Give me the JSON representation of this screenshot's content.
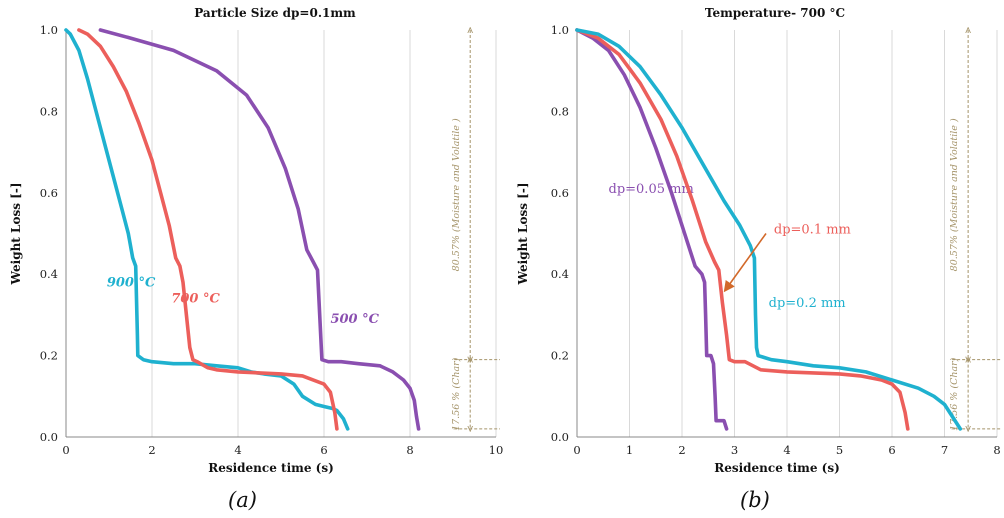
{
  "colors": {
    "blue": "#1fb1cf",
    "red": "#ec5f5b",
    "purple": "#8a4fb0",
    "annotation": "#a5946a",
    "grid": "#d9d9d9"
  },
  "captions": {
    "a": "(a)",
    "b": "(b)"
  },
  "chart_data": [
    {
      "type": "line",
      "title": "Particle Size dp=0.1mm",
      "xlabel": "Residence time (s)",
      "ylabel": "Weight Loss [-]",
      "xlim": [
        0,
        10
      ],
      "ylim": [
        0,
        1.0
      ],
      "xticks": [
        "0",
        "2",
        "4",
        "6",
        "8",
        "10"
      ],
      "yticks": [
        "0.0",
        "0.2",
        "0.4",
        "0.6",
        "0.8",
        "1.0"
      ],
      "grid": "vertical",
      "series": [
        {
          "name": "900 °C",
          "color": "#1fb1cf",
          "label_x": 0.95,
          "label_y": 0.37,
          "x": [
            0,
            0.1,
            0.3,
            0.5,
            0.7,
            0.9,
            1.1,
            1.3,
            1.45,
            1.55,
            1.62,
            1.65,
            1.66,
            1.67,
            1.8,
            2.0,
            2.5,
            3.0,
            3.5,
            4.0,
            4.3,
            4.6,
            5.0,
            5.3,
            5.5,
            5.8,
            6.0,
            6.2,
            6.3,
            6.45,
            6.55
          ],
          "y": [
            1.0,
            0.99,
            0.95,
            0.88,
            0.8,
            0.72,
            0.64,
            0.56,
            0.5,
            0.44,
            0.42,
            0.3,
            0.25,
            0.2,
            0.19,
            0.185,
            0.18,
            0.18,
            0.175,
            0.17,
            0.16,
            0.155,
            0.15,
            0.13,
            0.1,
            0.08,
            0.075,
            0.07,
            0.065,
            0.045,
            0.02
          ]
        },
        {
          "name": "700 °C",
          "color": "#ec5f5b",
          "label_x": 2.45,
          "label_y": 0.33,
          "x": [
            0.3,
            0.5,
            0.8,
            1.1,
            1.4,
            1.7,
            2.0,
            2.2,
            2.4,
            2.55,
            2.65,
            2.72,
            2.8,
            2.88,
            2.95,
            3.05,
            3.3,
            3.5,
            4.0,
            5.0,
            5.5,
            6.0,
            6.15,
            6.25,
            6.3
          ],
          "y": [
            1.0,
            0.99,
            0.96,
            0.91,
            0.85,
            0.77,
            0.68,
            0.6,
            0.52,
            0.44,
            0.42,
            0.38,
            0.3,
            0.22,
            0.19,
            0.185,
            0.17,
            0.165,
            0.16,
            0.155,
            0.15,
            0.13,
            0.11,
            0.06,
            0.02
          ]
        },
        {
          "name": "500 °C",
          "color": "#8a4fb0",
          "label_x": 6.15,
          "label_y": 0.28,
          "x": [
            0.8,
            1.5,
            2.5,
            3.5,
            4.2,
            4.7,
            5.1,
            5.4,
            5.6,
            5.75,
            5.85,
            5.9,
            5.95,
            6.1,
            6.4,
            6.8,
            7.3,
            7.6,
            7.85,
            8.0,
            8.1,
            8.15,
            8.2
          ],
          "y": [
            1.0,
            0.98,
            0.95,
            0.9,
            0.84,
            0.76,
            0.66,
            0.56,
            0.46,
            0.43,
            0.41,
            0.3,
            0.19,
            0.185,
            0.185,
            0.18,
            0.175,
            0.16,
            0.14,
            0.12,
            0.09,
            0.05,
            0.02
          ]
        }
      ],
      "annotations": {
        "top_label": "80.57% (Moisture and Volatile )",
        "bottom_label": "17.56 % (Char)",
        "bracket_x": 9.4,
        "top_range": [
          1.0,
          0.19
        ],
        "bottom_range": [
          0.19,
          0.02
        ]
      }
    },
    {
      "type": "line",
      "title": "Temperature- 700 °C",
      "xlabel": "Residence time (s)",
      "ylabel": "Weight Loss [-]",
      "xlim": [
        0,
        8
      ],
      "ylim": [
        0,
        1.0
      ],
      "xticks": [
        "0",
        "1",
        "2",
        "3",
        "4",
        "5",
        "6",
        "7",
        "8"
      ],
      "yticks": [
        "0.0",
        "0.2",
        "0.4",
        "0.6",
        "0.8",
        "1.0"
      ],
      "grid": "vertical",
      "series": [
        {
          "name": "dp=0.05 mm",
          "color": "#8a4fb0",
          "label_x": 0.6,
          "label_y": 0.6,
          "x": [
            0,
            0.3,
            0.6,
            0.9,
            1.2,
            1.5,
            1.8,
            2.05,
            2.25,
            2.38,
            2.43,
            2.45,
            2.47,
            2.55,
            2.6,
            2.63,
            2.65,
            2.7,
            2.75,
            2.8,
            2.85
          ],
          "y": [
            1.0,
            0.98,
            0.95,
            0.89,
            0.81,
            0.71,
            0.6,
            0.5,
            0.42,
            0.4,
            0.38,
            0.3,
            0.2,
            0.2,
            0.18,
            0.1,
            0.04,
            0.04,
            0.04,
            0.04,
            0.02
          ]
        },
        {
          "name": "dp=0.1 mm",
          "color": "#ec5f5b",
          "label_x": 3.75,
          "label_y": 0.5,
          "x": [
            0,
            0.4,
            0.8,
            1.2,
            1.6,
            1.9,
            2.2,
            2.45,
            2.62,
            2.7,
            2.77,
            2.85,
            2.9,
            3.0,
            3.2,
            3.5,
            4.0,
            5.0,
            5.4,
            5.8,
            6.0,
            6.15,
            6.25,
            6.3
          ],
          "y": [
            1.0,
            0.98,
            0.94,
            0.87,
            0.78,
            0.69,
            0.58,
            0.48,
            0.43,
            0.41,
            0.33,
            0.25,
            0.19,
            0.185,
            0.185,
            0.165,
            0.16,
            0.155,
            0.15,
            0.14,
            0.13,
            0.11,
            0.06,
            0.02
          ]
        },
        {
          "name": "dp=0.2 mm",
          "color": "#1fb1cf",
          "label_x": 3.65,
          "label_y": 0.32,
          "x": [
            0,
            0.4,
            0.8,
            1.2,
            1.6,
            2.0,
            2.4,
            2.8,
            3.1,
            3.3,
            3.38,
            3.4,
            3.42,
            3.45,
            3.7,
            4.0,
            4.5,
            5.0,
            5.5,
            6.0,
            6.5,
            6.8,
            7.0,
            7.15,
            7.3
          ],
          "y": [
            1.0,
            0.99,
            0.96,
            0.91,
            0.84,
            0.76,
            0.67,
            0.58,
            0.52,
            0.47,
            0.44,
            0.3,
            0.22,
            0.2,
            0.19,
            0.185,
            0.175,
            0.17,
            0.16,
            0.14,
            0.12,
            0.1,
            0.08,
            0.05,
            0.02
          ]
        }
      ],
      "arrow": {
        "from": [
          3.6,
          0.5
        ],
        "to": [
          2.82,
          0.36
        ]
      },
      "annotations": {
        "top_label": "80.57% (Moisture and Volatile )",
        "bottom_label": "17.56 % (Char)",
        "bracket_x": 7.45,
        "top_range": [
          1.0,
          0.19
        ],
        "bottom_range": [
          0.19,
          0.02
        ]
      }
    }
  ]
}
